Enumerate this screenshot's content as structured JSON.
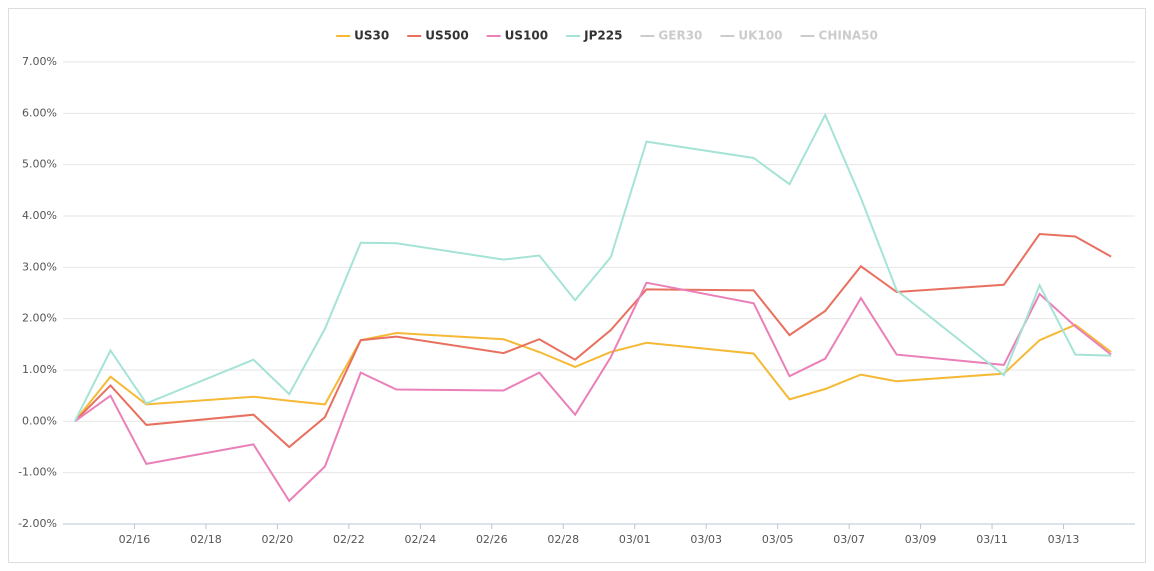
{
  "chart_data": {
    "type": "line",
    "x": [
      "02/14",
      "02/15",
      "02/16",
      "02/19",
      "02/20",
      "02/21",
      "02/22",
      "02/23",
      "02/26",
      "02/27",
      "02/28",
      "02/29",
      "03/01",
      "03/04",
      "03/05",
      "03/06",
      "03/07",
      "03/08",
      "03/11",
      "03/12",
      "03/13",
      "03/14"
    ],
    "series": [
      {
        "name": "US30",
        "color": "#f5b935",
        "values": [
          0,
          0.87,
          0.33,
          0.48,
          0.4,
          0.33,
          1.58,
          1.72,
          1.6,
          1.35,
          1.06,
          1.35,
          1.53,
          1.32,
          0.43,
          0.63,
          0.91,
          0.78,
          0.93,
          1.58,
          1.88,
          1.35
        ]
      },
      {
        "name": "US500",
        "color": "#e8705f",
        "values": [
          0,
          0.7,
          -0.07,
          0.13,
          -0.5,
          0.08,
          1.58,
          1.65,
          1.33,
          1.6,
          1.2,
          1.78,
          2.57,
          2.55,
          1.68,
          2.15,
          3.02,
          2.52,
          2.66,
          3.65,
          3.6,
          3.21
        ]
      },
      {
        "name": "US100",
        "color": "#ea80b8",
        "values": [
          0,
          0.5,
          -0.83,
          -0.45,
          -1.55,
          -0.88,
          0.95,
          0.62,
          0.6,
          0.95,
          0.13,
          1.25,
          2.7,
          2.3,
          0.88,
          1.22,
          2.4,
          1.3,
          1.1,
          2.48,
          1.85,
          1.3
        ]
      },
      {
        "name": "JP225",
        "color": "#a6e3d7",
        "values": [
          0,
          1.38,
          0.35,
          1.2,
          0.53,
          1.8,
          3.48,
          3.47,
          3.15,
          3.23,
          2.36,
          3.2,
          5.45,
          5.13,
          4.62,
          5.97,
          4.35,
          2.55,
          0.9,
          2.65,
          1.3,
          1.28
        ]
      }
    ],
    "legend_inactive": [
      "GER30",
      "UK100",
      "CHINA50"
    ],
    "inactive_color": "#cccccc",
    "xlim": [
      "02/14",
      "03/15"
    ],
    "xticks": [
      "02/16",
      "02/18",
      "02/20",
      "02/22",
      "02/24",
      "02/26",
      "02/28",
      "03/01",
      "03/03",
      "03/05",
      "03/07",
      "03/09",
      "03/11",
      "03/13"
    ],
    "ylim": [
      -2,
      7
    ],
    "yticks": [
      {
        "value": -2,
        "label": "-2.00%"
      },
      {
        "value": -1,
        "label": "-1.00%"
      },
      {
        "value": 0,
        "label": "0.00%"
      },
      {
        "value": 1,
        "label": "1.00%"
      },
      {
        "value": 2,
        "label": "2.00%"
      },
      {
        "value": 3,
        "label": "3.00%"
      },
      {
        "value": 4,
        "label": "4.00%"
      },
      {
        "value": 5,
        "label": "5.00%"
      },
      {
        "value": 6,
        "label": "6.00%"
      },
      {
        "value": 7,
        "label": "7.00%"
      }
    ],
    "grid": true,
    "legend": "top"
  }
}
